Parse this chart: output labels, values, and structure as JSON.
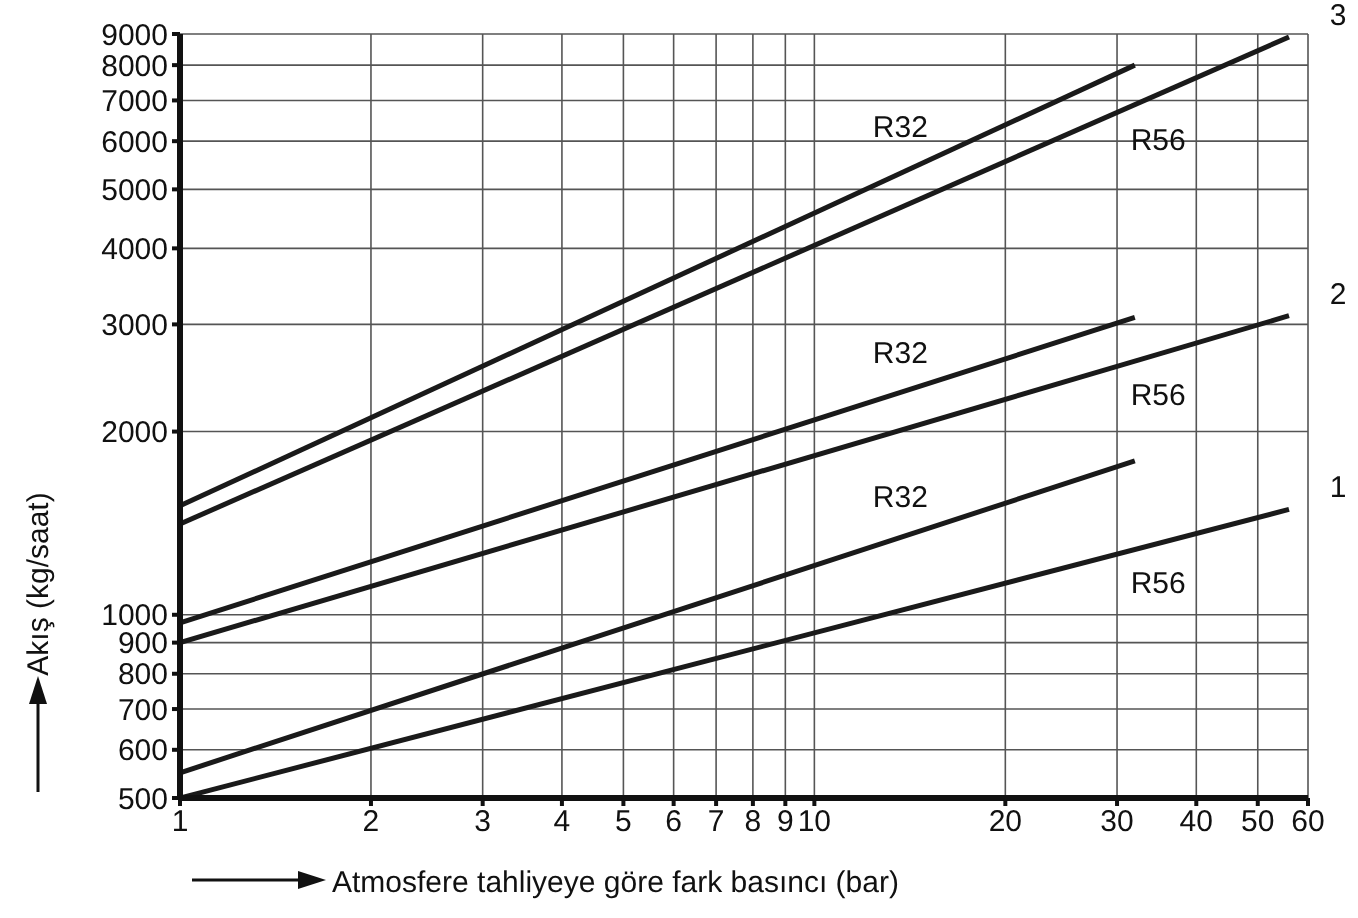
{
  "chart_data": {
    "type": "line",
    "xlabel": "Atmosfere tahliyeye göre fark basıncı (bar)",
    "ylabel": "Akış (kg/saat)",
    "log": "xy",
    "grid": true,
    "marker": "none",
    "line_style": "solid",
    "xlim": [
      1,
      60
    ],
    "xticks": [
      1,
      2,
      3,
      4,
      5,
      6,
      7,
      8,
      9,
      10,
      20,
      30,
      40,
      50,
      60
    ],
    "ylim": [
      500,
      9000
    ],
    "yticks": [
      500,
      600,
      700,
      800,
      900,
      1000,
      2000,
      3000,
      4000,
      5000,
      6000,
      7000,
      8000,
      9000
    ],
    "series": [
      {
        "name": "R32",
        "color": "#1a1a1a",
        "x": [
          1,
          32
        ],
        "values": [
          1510,
          8000
        ]
      },
      {
        "name": "R56",
        "color": "#1a1a1a",
        "x": [
          1,
          56
        ],
        "values": [
          1410,
          8900
        ]
      },
      {
        "name": "R32",
        "color": "#1a1a1a",
        "x": [
          1,
          32
        ],
        "values": [
          970,
          3080
        ]
      },
      {
        "name": "R56",
        "color": "#1a1a1a",
        "x": [
          1,
          56
        ],
        "values": [
          900,
          3100
        ]
      },
      {
        "name": "R32",
        "color": "#1a1a1a",
        "x": [
          1,
          32
        ],
        "values": [
          550,
          1790
        ]
      },
      {
        "name": "R56",
        "color": "#1a1a1a",
        "x": [
          1,
          56
        ],
        "values": [
          500,
          1490
        ]
      }
    ],
    "annotations": [
      "3",
      "2",
      "1"
    ]
  }
}
